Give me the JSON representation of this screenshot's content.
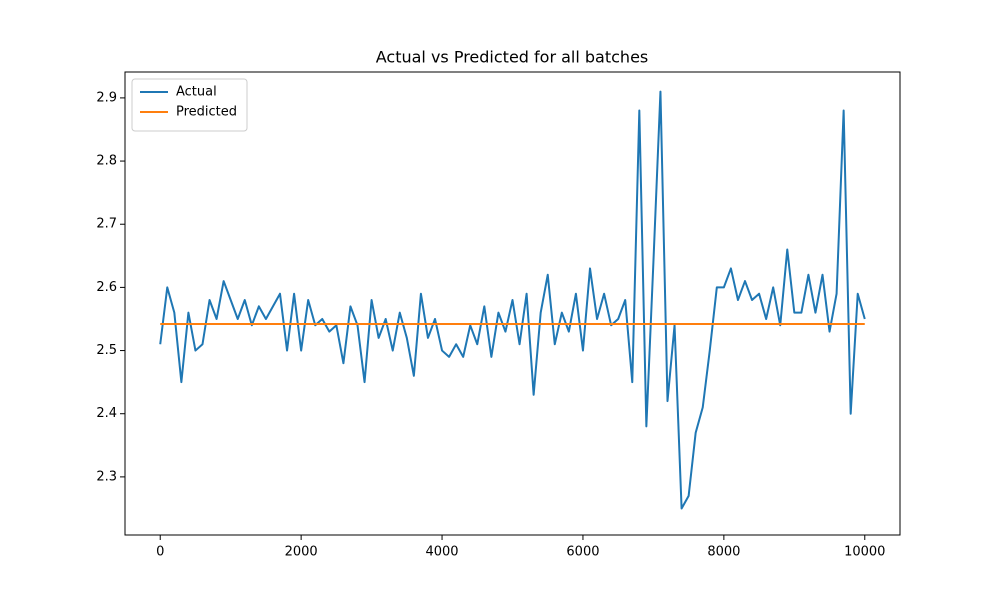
{
  "chart_data": {
    "type": "line",
    "title": "Actual vs Predicted for all batches",
    "xlim": [
      -500,
      10500
    ],
    "ylim": [
      2.208,
      2.941
    ],
    "xticks": [
      0,
      2000,
      4000,
      6000,
      8000,
      10000
    ],
    "yticks": [
      2.3,
      2.4,
      2.5,
      2.6,
      2.7,
      2.8,
      2.9
    ],
    "legend": "upper left",
    "series": [
      {
        "name": "Actual",
        "color": "#1f77b4",
        "x": [
          0,
          100,
          200,
          300,
          400,
          500,
          600,
          700,
          800,
          900,
          1000,
          1100,
          1200,
          1300,
          1400,
          1500,
          1600,
          1700,
          1800,
          1900,
          2000,
          2100,
          2200,
          2300,
          2400,
          2500,
          2600,
          2700,
          2800,
          2900,
          3000,
          3100,
          3200,
          3300,
          3400,
          3500,
          3600,
          3700,
          3800,
          3900,
          4000,
          4100,
          4200,
          4300,
          4400,
          4500,
          4600,
          4700,
          4800,
          4900,
          5000,
          5100,
          5200,
          5300,
          5400,
          5500,
          5600,
          5700,
          5800,
          5900,
          6000,
          6100,
          6200,
          6300,
          6400,
          6500,
          6600,
          6700,
          6800,
          6900,
          7000,
          7100,
          7200,
          7300,
          7400,
          7500,
          7600,
          7700,
          7800,
          7900,
          8000,
          8100,
          8200,
          8300,
          8400,
          8500,
          8600,
          8700,
          8800,
          8900,
          9000,
          9100,
          9200,
          9300,
          9400,
          9500,
          9600,
          9700,
          9800,
          9900,
          10000
        ],
        "values": [
          2.51,
          2.6,
          2.56,
          2.45,
          2.56,
          2.5,
          2.51,
          2.58,
          2.55,
          2.61,
          2.58,
          2.55,
          2.58,
          2.54,
          2.57,
          2.55,
          2.57,
          2.59,
          2.5,
          2.59,
          2.5,
          2.58,
          2.54,
          2.55,
          2.53,
          2.54,
          2.48,
          2.57,
          2.54,
          2.45,
          2.58,
          2.52,
          2.55,
          2.5,
          2.56,
          2.52,
          2.46,
          2.59,
          2.52,
          2.55,
          2.5,
          2.49,
          2.51,
          2.49,
          2.54,
          2.51,
          2.57,
          2.49,
          2.56,
          2.53,
          2.58,
          2.51,
          2.59,
          2.43,
          2.56,
          2.62,
          2.51,
          2.56,
          2.53,
          2.59,
          2.5,
          2.63,
          2.55,
          2.59,
          2.54,
          2.55,
          2.58,
          2.45,
          2.88,
          2.38,
          2.64,
          2.91,
          2.42,
          2.54,
          2.25,
          2.27,
          2.37,
          2.41,
          2.5,
          2.6,
          2.6,
          2.63,
          2.58,
          2.61,
          2.58,
          2.59,
          2.55,
          2.6,
          2.54,
          2.66,
          2.56,
          2.56,
          2.62,
          2.56,
          2.62,
          2.53,
          2.59,
          2.88,
          2.4,
          2.59,
          2.55
        ]
      },
      {
        "name": "Predicted",
        "color": "#ff7f0e",
        "x": [
          0,
          10000
        ],
        "values": [
          2.542,
          2.542
        ]
      }
    ]
  }
}
